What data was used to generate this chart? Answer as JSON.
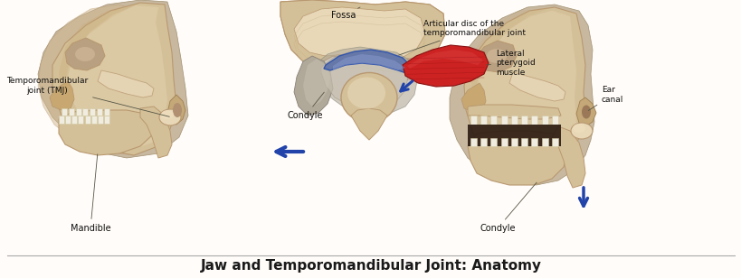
{
  "title": "Jaw and Temporomandibular Joint: Anatomy",
  "title_fontsize": 11,
  "title_color": "#1a1a1a",
  "title_fontweight": "bold",
  "background_color": "#ffffff",
  "fig_width": 8.2,
  "fig_height": 3.08,
  "dpi": 100,
  "labels": {
    "fossa": "Fossa",
    "articular_disc": "Articular disc of the\ntemporomandibular joint",
    "lateral_pterygoid": "Lateral\npterygoid\nmuscle",
    "condyle_center": "Condyle",
    "tmj": "Temporomandibular\njoint (TMJ)",
    "mandible": "Mandible",
    "ear_canal": "Ear\ncanal",
    "condyle_right": "Condyle"
  },
  "label_color": "#111111",
  "label_fontsize": 6.5,
  "arrow_color": "#2244aa",
  "border_color": "#aaaaaa",
  "skin_light": "#d4b896",
  "skin_mid": "#c4a878",
  "skin_dark": "#a08050",
  "bone_light": "#e8d8b8",
  "bone_mid": "#d4c098",
  "bone_dark": "#b89870",
  "shadow": "#7a6040",
  "muscle_red": "#cc2222",
  "disc_blue": "#6688bb",
  "disc_dark": "#334466"
}
